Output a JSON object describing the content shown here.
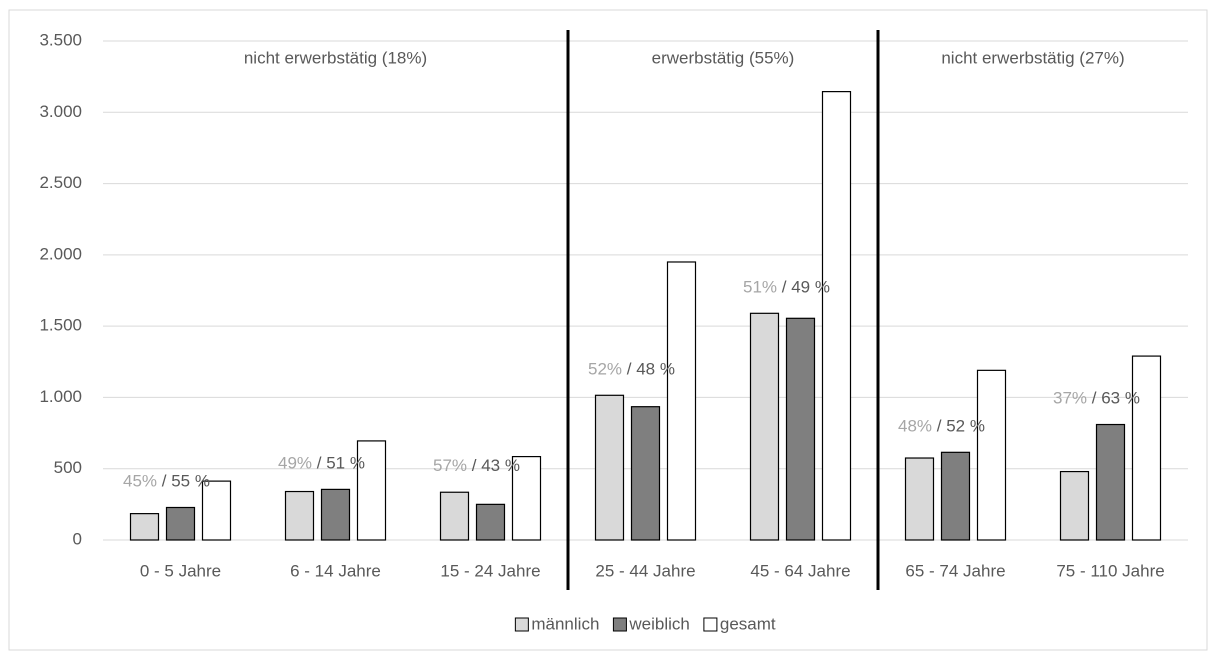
{
  "chart_data": {
    "type": "bar",
    "categories": [
      "0 - 5 Jahre",
      "6 - 14 Jahre",
      "15 - 24 Jahre",
      "25 - 44 Jahre",
      "45 - 64 Jahre",
      "65 - 74 Jahre",
      "75 - 110 Jahre"
    ],
    "series": [
      {
        "name": "männlich",
        "color": "#d9d9d9",
        "values": [
          185,
          340,
          335,
          1015,
          1590,
          575,
          480
        ]
      },
      {
        "name": "weiblich",
        "color": "#7f7f7f",
        "values": [
          228,
          355,
          250,
          935,
          1555,
          615,
          810
        ]
      },
      {
        "name": "gesamt",
        "color": "#ffffff",
        "values": [
          413,
          695,
          585,
          1950,
          3145,
          1190,
          1290
        ]
      }
    ],
    "split_labels": [
      {
        "male": "45%",
        "female": "/ 55 %"
      },
      {
        "male": "49%",
        "female": "/ 51 %"
      },
      {
        "male": "57%",
        "female": "/ 43 %"
      },
      {
        "male": "52%",
        "female": "/ 48 %"
      },
      {
        "male": "51%",
        "female": "/ 49 %"
      },
      {
        "male": "48%",
        "female": "/ 52 %"
      },
      {
        "male": "37%",
        "female": "/ 63 %"
      }
    ],
    "sections": [
      {
        "label": "nicht erwerbstätig (18%)",
        "first": 0,
        "last": 2
      },
      {
        "label": "erwerbstätig (55%)",
        "first": 3,
        "last": 4
      },
      {
        "label": "nicht erwerbstätig (27%)",
        "first": 5,
        "last": 6
      }
    ],
    "ylim": [
      0,
      3500
    ],
    "yticks": [
      0,
      500,
      {
        "value": 1000,
        "label": "1.000"
      },
      {
        "value": 1500,
        "label": "1.500"
      },
      {
        "value": 2000,
        "label": "2.000"
      },
      {
        "value": 2500,
        "label": "2.500"
      },
      {
        "value": 3000,
        "label": "3.000"
      },
      {
        "value": 3500,
        "label": "3.500"
      }
    ],
    "grid": true,
    "legend": "bottom"
  }
}
